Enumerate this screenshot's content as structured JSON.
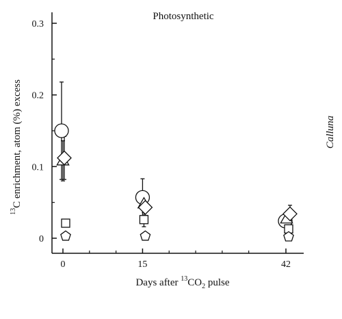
{
  "chart_data": {
    "type": "scatter",
    "title": "Photosynthetic",
    "side_label": "Calluna",
    "xlabel": {
      "before": "Days after ",
      "sup": "13",
      "after": "CO",
      "sub": "2",
      "tail": " pulse"
    },
    "ylabel": {
      "sup": "13",
      "text": "C enrichment, atom (%) excess"
    },
    "ylim": [
      -0.025,
      0.32
    ],
    "y_ticks": [
      0,
      0.1,
      0.2,
      0.3
    ],
    "y_tick_labels": [
      "0",
      "0.1",
      "0.2",
      "0.3"
    ],
    "x_ticks": [
      0,
      15,
      42
    ],
    "x_tick_labels": [
      "0",
      "15",
      "42"
    ],
    "grid": false,
    "legend": "none",
    "series": [
      {
        "marker": "circle",
        "points": [
          {
            "x": 0,
            "y": 0.15,
            "err": 0.068
          },
          {
            "x": 15,
            "y": 0.057,
            "err": 0.026
          },
          {
            "x": 42,
            "y": 0.024,
            "err": 0.0
          }
        ]
      },
      {
        "marker": "triangle",
        "points": [
          {
            "x": 0,
            "y": 0.108,
            "err": 0.028
          },
          {
            "x": 15,
            "y": 0.048,
            "err": 0.0
          },
          {
            "x": 42,
            "y": 0.027,
            "err": 0.0
          }
        ]
      },
      {
        "marker": "diamond",
        "points": [
          {
            "x": 0,
            "y": 0.112,
            "err": 0.03
          },
          {
            "x": 15,
            "y": 0.043,
            "err": 0.011
          },
          {
            "x": 42,
            "y": 0.034,
            "err": 0.012
          }
        ]
      },
      {
        "marker": "square",
        "points": [
          {
            "x": 0,
            "y": 0.021,
            "err": 0.0
          },
          {
            "x": 15,
            "y": 0.026,
            "err": 0.01
          },
          {
            "x": 42,
            "y": 0.013,
            "err": 0.0
          }
        ]
      },
      {
        "marker": "pentagon",
        "points": [
          {
            "x": 0,
            "y": 0.003,
            "err": 0.0
          },
          {
            "x": 15,
            "y": 0.003,
            "err": 0.0
          },
          {
            "x": 42,
            "y": 0.002,
            "err": 0.0
          }
        ]
      }
    ]
  }
}
